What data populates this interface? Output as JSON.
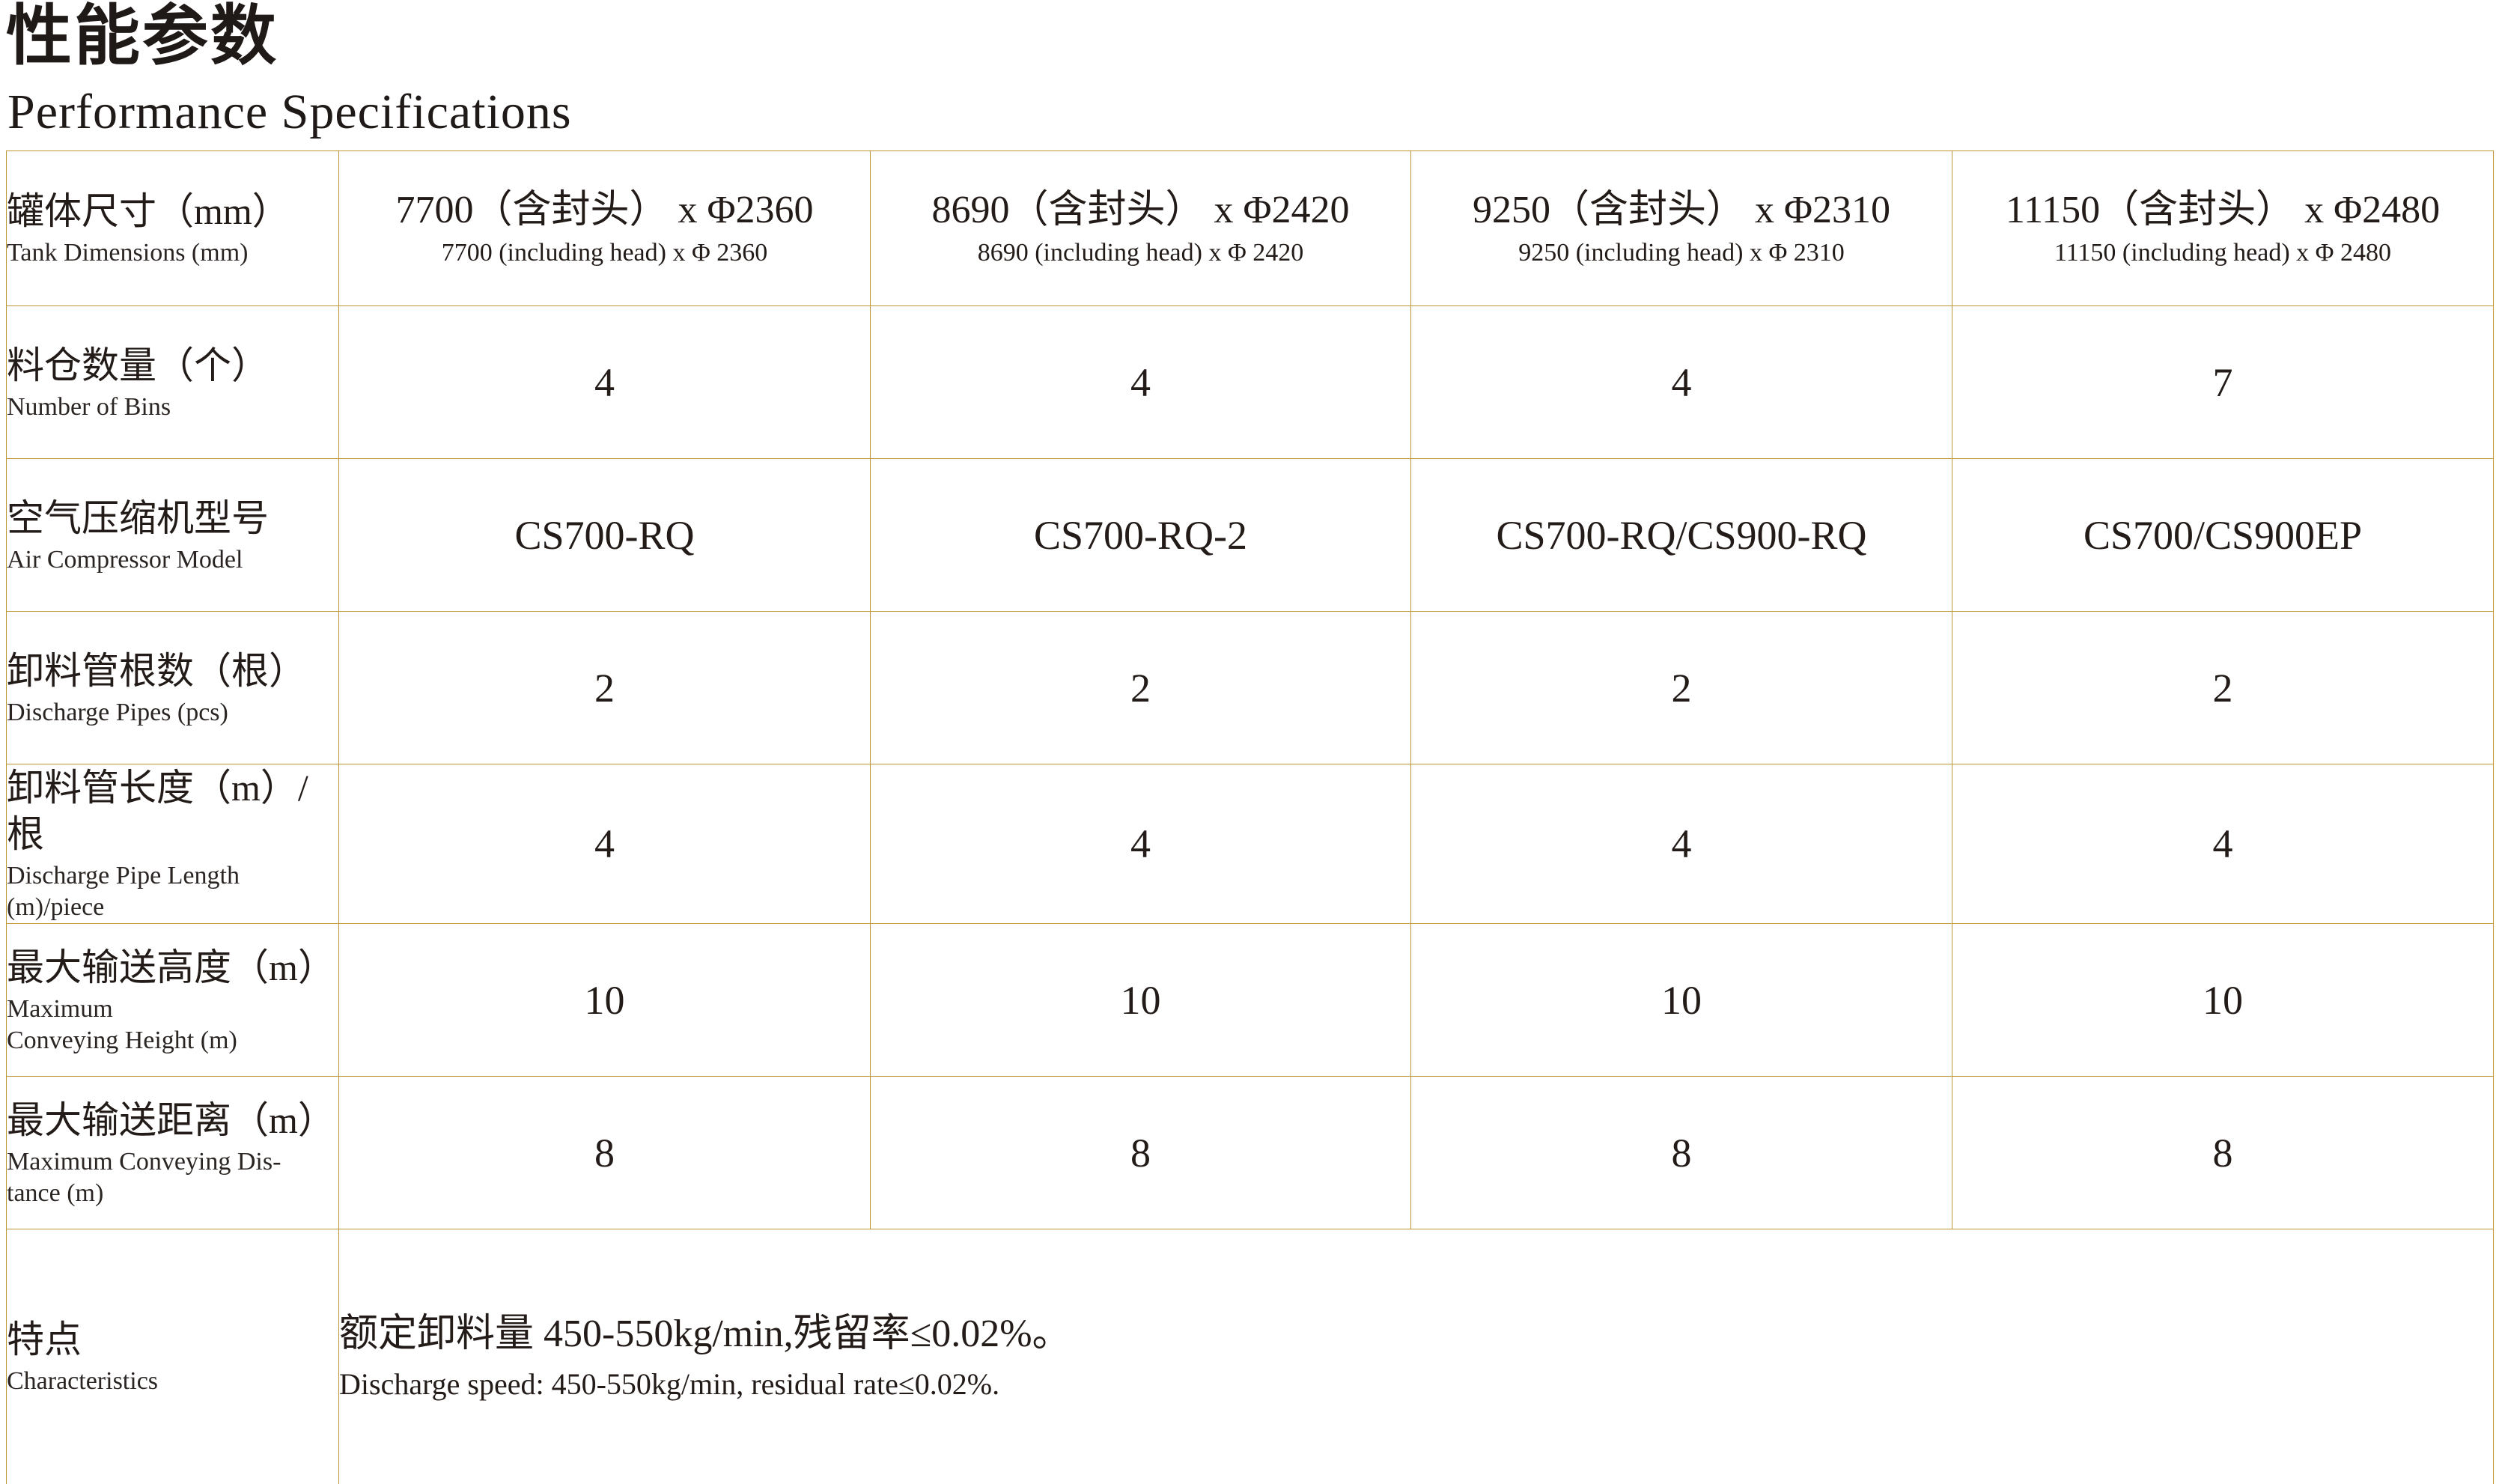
{
  "theme": {
    "border_color": "#BD9832",
    "text_color": "#221B18"
  },
  "page": {
    "title_zh": "性能参数",
    "title_en": "Performance Specifications"
  },
  "table": {
    "header": {
      "label_zh": "罐体尺寸（mm）",
      "label_en": "Tank Dimensions (mm)",
      "cols": [
        {
          "main": "7700（含封头） x Φ2360",
          "sub": "7700 (including head) x Φ 2360"
        },
        {
          "main": "8690（含封头） x Φ2420",
          "sub": "8690 (including head) x Φ 2420"
        },
        {
          "main": "9250（含封头） x Φ2310",
          "sub": "9250 (including head) x Φ 2310"
        },
        {
          "main": "11150（含封头） x Φ2480",
          "sub": "11150 (including head) x Φ 2480"
        }
      ]
    },
    "rows": [
      {
        "label_zh": "料仓数量（个）",
        "label_en": "Number of Bins",
        "values": [
          "4",
          "4",
          "4",
          "7"
        ]
      },
      {
        "label_zh": "空气压缩机型号",
        "label_en": "Air Compressor Model",
        "values": [
          "CS700-RQ",
          "CS700-RQ-2",
          "CS700-RQ/CS900-RQ",
          "CS700/CS900EP"
        ]
      },
      {
        "label_zh": "卸料管根数（根）",
        "label_en": "Discharge Pipes (pcs)",
        "values": [
          "2",
          "2",
          "2",
          "2"
        ]
      },
      {
        "label_zh": "卸料管长度（m）/根",
        "label_en": "Discharge Pipe Length\n(m)/piece",
        "values": [
          "4",
          "4",
          "4",
          "4"
        ]
      },
      {
        "label_zh": "最大输送高度（m）",
        "label_en": "Maximum\nConveying Height (m)",
        "values": [
          "10",
          "10",
          "10",
          "10"
        ]
      },
      {
        "label_zh": "最大输送距离（m）",
        "label_en": "Maximum Conveying Dis-\ntance (m)",
        "values": [
          "8",
          "8",
          "8",
          "8"
        ]
      }
    ],
    "footer": {
      "label_zh": "特点",
      "label_en": "Characteristics",
      "line_zh": "额定卸料量 450-550kg/min,残留率≤0.02%。",
      "line_en": "Discharge speed: 450-550kg/min, residual rate≤0.02%."
    }
  }
}
